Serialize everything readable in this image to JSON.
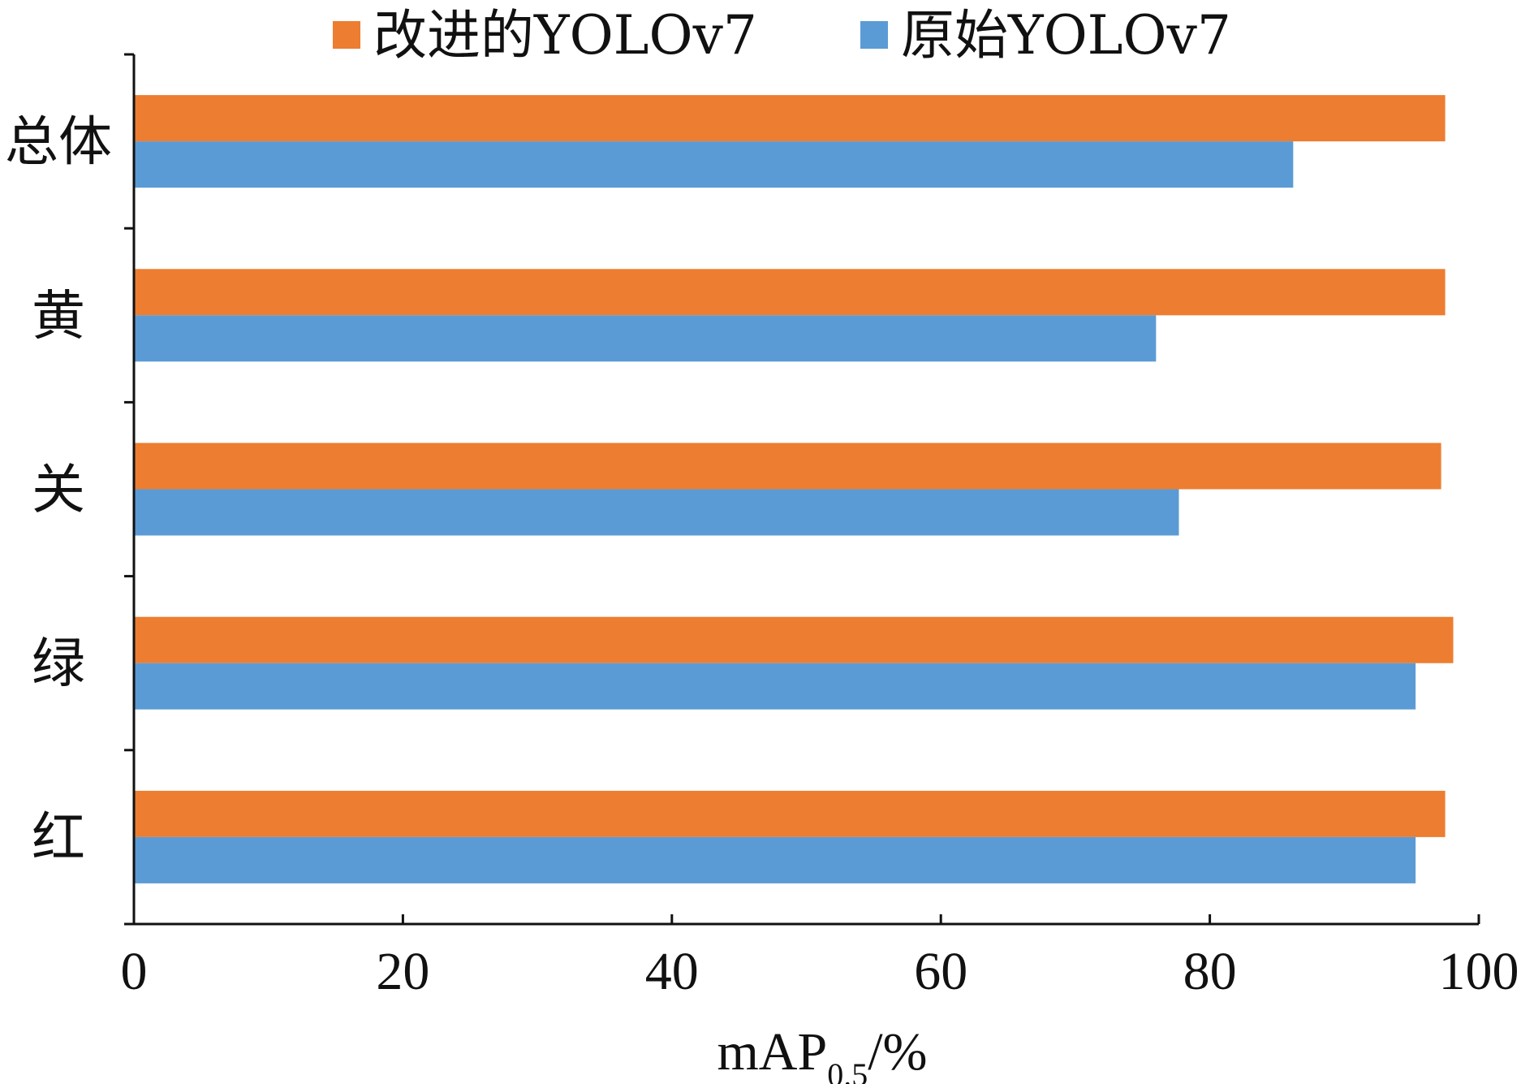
{
  "chart_data": {
    "type": "bar",
    "orientation": "horizontal",
    "categories": [
      "总体",
      "黄",
      "关",
      "绿",
      "红"
    ],
    "series": [
      {
        "name": "改进的YOLOv7",
        "color": "#ED7D31",
        "values": [
          97.5,
          97.5,
          97.2,
          98.1,
          97.5
        ]
      },
      {
        "name": "原始YOLOv7",
        "color": "#5B9BD5",
        "values": [
          86.2,
          76.0,
          77.7,
          95.3,
          95.3
        ]
      }
    ],
    "xlabel": {
      "main": "mAP",
      "subscript": "0.5",
      "suffix": "/%"
    },
    "ylabel": "",
    "xlim": [
      0,
      100
    ],
    "xticks": [
      "0",
      "20",
      "40",
      "60",
      "80",
      "100"
    ],
    "grid": false,
    "legend": "top-center"
  }
}
